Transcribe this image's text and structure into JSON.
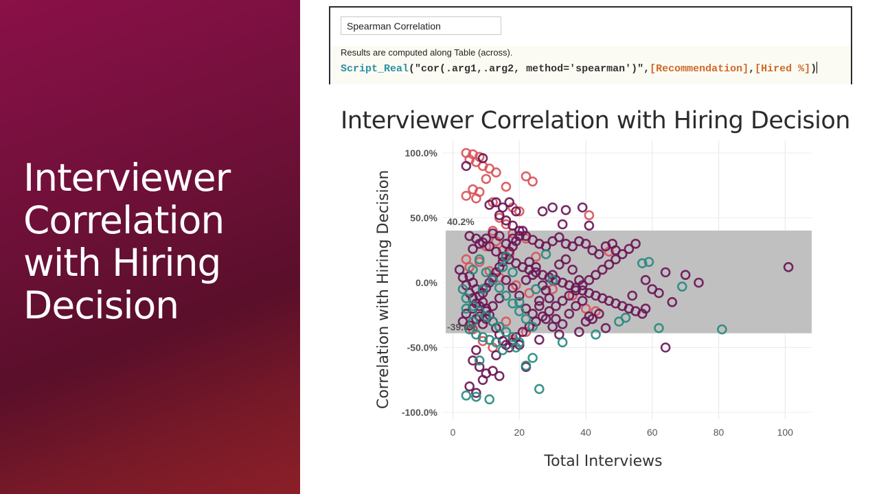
{
  "left_panel": {
    "title": "Interviewer Correlation with Hiring Decision"
  },
  "calculation_editor": {
    "name_value": "Spearman Correlation",
    "note": "Results are computed along Table (across).",
    "formula": {
      "function": "Script_Real",
      "open_paren": "(",
      "script_string": "\"cor(.arg1,.arg2, method='spearman')\"",
      "comma1": ",",
      "field1": "[Recommendation]",
      "comma2": ",",
      "field2": "[Hired %]",
      "close_paren": ")"
    }
  },
  "visualization": {
    "title": "Interviewer Correlation with Hiring Decision"
  },
  "chart_data": {
    "type": "scatter",
    "title": "Interviewer Correlation with Hiring Decision",
    "xlabel": "Total Interviews",
    "ylabel": "Correlation with Hiring Decision",
    "xlim": [
      -3,
      108
    ],
    "ylim": [
      -100,
      100
    ],
    "x_ticks": [
      0,
      20,
      40,
      60,
      80,
      100
    ],
    "x_tick_labels": [
      "0",
      "20",
      "40",
      "60",
      "80",
      "100"
    ],
    "y_ticks": [
      100,
      50,
      0,
      -50,
      -100
    ],
    "y_tick_labels": [
      "100.0%",
      "50.0%",
      "0.0%",
      "-50.0%",
      "-100.0%"
    ],
    "grid": true,
    "reference_band": {
      "low": -39.0,
      "high": 40.2,
      "low_label": "-39.0%",
      "high_label": "40.2%",
      "color": "#bdbdbd"
    },
    "colors": {
      "red": "#d9545a",
      "purple": "#6b1758",
      "teal": "#2a8a80"
    },
    "series": [
      {
        "color_key": "red",
        "points": [
          [
            4,
            100
          ],
          [
            6,
            99
          ],
          [
            8,
            97
          ],
          [
            5,
            95
          ],
          [
            7,
            93
          ],
          [
            9,
            90
          ],
          [
            11,
            88
          ],
          [
            13,
            85
          ],
          [
            10,
            80
          ],
          [
            6,
            72
          ],
          [
            8,
            70
          ],
          [
            4,
            67
          ],
          [
            7,
            65
          ],
          [
            12,
            62
          ],
          [
            16,
            74
          ],
          [
            22,
            82
          ],
          [
            24,
            78
          ],
          [
            18,
            58
          ],
          [
            20,
            55
          ],
          [
            14,
            50
          ],
          [
            16,
            45
          ],
          [
            12,
            40
          ],
          [
            18,
            38
          ],
          [
            20,
            36
          ],
          [
            22,
            34
          ],
          [
            13,
            32
          ],
          [
            10,
            28
          ],
          [
            15,
            25
          ],
          [
            17,
            22
          ],
          [
            25,
            20
          ],
          [
            8,
            16
          ],
          [
            5,
            12
          ],
          [
            4,
            18
          ],
          [
            11,
            9
          ],
          [
            14,
            4
          ],
          [
            19,
            -2
          ],
          [
            23,
            -8
          ],
          [
            30,
            -5
          ],
          [
            36,
            -10
          ],
          [
            40,
            -20
          ],
          [
            43,
            -22
          ],
          [
            47,
            24
          ],
          [
            41,
            52
          ],
          [
            16,
            -30
          ],
          [
            22,
            -38
          ],
          [
            9,
            -45
          ],
          [
            6,
            -36
          ],
          [
            18,
            -44
          ],
          [
            12,
            -50
          ]
        ]
      },
      {
        "color_key": "purple",
        "points": [
          [
            4,
            90
          ],
          [
            9,
            96
          ],
          [
            11,
            60
          ],
          [
            13,
            62
          ],
          [
            15,
            58
          ],
          [
            17,
            62
          ],
          [
            19,
            55
          ],
          [
            14,
            52
          ],
          [
            16,
            48
          ],
          [
            18,
            44
          ],
          [
            20,
            40
          ],
          [
            22,
            36
          ],
          [
            24,
            33
          ],
          [
            26,
            30
          ],
          [
            28,
            28
          ],
          [
            30,
            32
          ],
          [
            32,
            35
          ],
          [
            34,
            30
          ],
          [
            36,
            28
          ],
          [
            38,
            32
          ],
          [
            40,
            30
          ],
          [
            42,
            25
          ],
          [
            44,
            22
          ],
          [
            46,
            28
          ],
          [
            48,
            30
          ],
          [
            49,
            25
          ],
          [
            27,
            55
          ],
          [
            30,
            58
          ],
          [
            34,
            56
          ],
          [
            39,
            58
          ],
          [
            41,
            44
          ],
          [
            33,
            45
          ],
          [
            5,
            36
          ],
          [
            7,
            34
          ],
          [
            9,
            31
          ],
          [
            11,
            28
          ],
          [
            13,
            24
          ],
          [
            15,
            20
          ],
          [
            17,
            18
          ],
          [
            19,
            15
          ],
          [
            21,
            12
          ],
          [
            23,
            10
          ],
          [
            25,
            8
          ],
          [
            27,
            6
          ],
          [
            29,
            4
          ],
          [
            31,
            2
          ],
          [
            33,
            0
          ],
          [
            35,
            -2
          ],
          [
            37,
            -4
          ],
          [
            39,
            -6
          ],
          [
            41,
            -8
          ],
          [
            43,
            -10
          ],
          [
            45,
            -12
          ],
          [
            47,
            -14
          ],
          [
            49,
            -16
          ],
          [
            51,
            -18
          ],
          [
            53,
            -20
          ],
          [
            55,
            -22
          ],
          [
            57,
            -24
          ],
          [
            5,
            5
          ],
          [
            6,
            0
          ],
          [
            7,
            -5
          ],
          [
            8,
            -10
          ],
          [
            9,
            -15
          ],
          [
            10,
            -20
          ],
          [
            11,
            -25
          ],
          [
            12,
            -30
          ],
          [
            13,
            -35
          ],
          [
            14,
            -40
          ],
          [
            15,
            -45
          ],
          [
            16,
            -48
          ],
          [
            17,
            -50
          ],
          [
            18,
            -46
          ],
          [
            19,
            -42
          ],
          [
            21,
            -38
          ],
          [
            23,
            -34
          ],
          [
            25,
            -30
          ],
          [
            27,
            -26
          ],
          [
            29,
            -22
          ],
          [
            31,
            -18
          ],
          [
            33,
            -14
          ],
          [
            35,
            -10
          ],
          [
            37,
            -6
          ],
          [
            39,
            -2
          ],
          [
            41,
            2
          ],
          [
            43,
            6
          ],
          [
            45,
            10
          ],
          [
            47,
            14
          ],
          [
            49,
            18
          ],
          [
            51,
            22
          ],
          [
            53,
            26
          ],
          [
            55,
            30
          ],
          [
            58,
            2
          ],
          [
            60,
            -5
          ],
          [
            62,
            -8
          ],
          [
            64,
            8
          ],
          [
            66,
            -15
          ],
          [
            70,
            6
          ],
          [
            74,
            0
          ],
          [
            64,
            -50
          ],
          [
            54,
            -10
          ],
          [
            58,
            -20
          ],
          [
            46,
            -35
          ],
          [
            38,
            -38
          ],
          [
            32,
            -40
          ],
          [
            26,
            -44
          ],
          [
            20,
            -48
          ],
          [
            6,
            -60
          ],
          [
            8,
            -65
          ],
          [
            10,
            -70
          ],
          [
            12,
            -68
          ],
          [
            14,
            -72
          ],
          [
            5,
            -80
          ],
          [
            7,
            -85
          ],
          [
            9,
            -75
          ],
          [
            22,
            -65
          ],
          [
            101,
            12
          ],
          [
            7,
            -52
          ],
          [
            13,
            -56
          ],
          [
            4,
            -24
          ],
          [
            6,
            -20
          ],
          [
            8,
            -26
          ],
          [
            10,
            -22
          ],
          [
            3,
            -30
          ],
          [
            5,
            -33
          ],
          [
            7,
            -28
          ],
          [
            9,
            -32
          ],
          [
            2,
            10
          ],
          [
            3,
            4
          ],
          [
            4,
            -2
          ],
          [
            5,
            -8
          ],
          [
            6,
            -12
          ],
          [
            7,
            -16
          ],
          [
            8,
            -18
          ],
          [
            9,
            -8
          ],
          [
            10,
            -4
          ],
          [
            11,
            0
          ],
          [
            12,
            4
          ],
          [
            13,
            8
          ],
          [
            14,
            12
          ],
          [
            15,
            16
          ],
          [
            16,
            20
          ],
          [
            17,
            24
          ],
          [
            18,
            28
          ],
          [
            19,
            32
          ],
          [
            20,
            36
          ],
          [
            21,
            40
          ],
          [
            23,
            16
          ],
          [
            25,
            12
          ],
          [
            27,
            -2
          ],
          [
            29,
            -12
          ],
          [
            31,
            -28
          ],
          [
            33,
            -32
          ],
          [
            35,
            -24
          ],
          [
            37,
            -18
          ],
          [
            39,
            -14
          ],
          [
            41,
            -26
          ],
          [
            22,
            -20
          ],
          [
            24,
            -24
          ],
          [
            26,
            -14
          ],
          [
            28,
            -6
          ],
          [
            30,
            6
          ],
          [
            32,
            14
          ],
          [
            34,
            18
          ],
          [
            36,
            10
          ],
          [
            38,
            2
          ],
          [
            40,
            -30
          ],
          [
            42,
            -28
          ],
          [
            44,
            -24
          ],
          [
            20,
            -10
          ],
          [
            18,
            -4
          ],
          [
            16,
            2
          ],
          [
            14,
            -12
          ],
          [
            12,
            -18
          ],
          [
            10,
            -28
          ],
          [
            22,
            2
          ],
          [
            24,
            6
          ],
          [
            26,
            -18
          ],
          [
            28,
            -28
          ],
          [
            30,
            -34
          ],
          [
            16,
            30
          ],
          [
            18,
            34
          ],
          [
            14,
            36
          ],
          [
            12,
            38
          ],
          [
            10,
            34
          ],
          [
            8,
            30
          ],
          [
            6,
            26
          ]
        ]
      },
      {
        "color_key": "teal",
        "points": [
          [
            8,
            18
          ],
          [
            6,
            10
          ],
          [
            10,
            8
          ],
          [
            12,
            2
          ],
          [
            14,
            -4
          ],
          [
            16,
            -10
          ],
          [
            18,
            -16
          ],
          [
            20,
            -22
          ],
          [
            22,
            -28
          ],
          [
            24,
            -34
          ],
          [
            4,
            -12
          ],
          [
            6,
            -18
          ],
          [
            8,
            -22
          ],
          [
            10,
            -26
          ],
          [
            12,
            -30
          ],
          [
            14,
            -34
          ],
          [
            16,
            -38
          ],
          [
            18,
            -42
          ],
          [
            20,
            -46
          ],
          [
            5,
            -36
          ],
          [
            7,
            -40
          ],
          [
            9,
            -42
          ],
          [
            11,
            -44
          ],
          [
            13,
            -46
          ],
          [
            15,
            -52
          ],
          [
            19,
            -50
          ],
          [
            24,
            -58
          ],
          [
            22,
            -64
          ],
          [
            26,
            -82
          ],
          [
            8,
            -60
          ],
          [
            4,
            -87
          ],
          [
            7,
            -88
          ],
          [
            11,
            -90
          ],
          [
            33,
            -46
          ],
          [
            43,
            -40
          ],
          [
            50,
            -30
          ],
          [
            52,
            -27
          ],
          [
            57,
            15
          ],
          [
            59,
            16
          ],
          [
            62,
            -35
          ],
          [
            69,
            -3
          ],
          [
            81,
            -36
          ],
          [
            28,
            22
          ],
          [
            30,
            2
          ],
          [
            15,
            12
          ],
          [
            18,
            8
          ],
          [
            3,
            -5
          ],
          [
            4,
            -20
          ],
          [
            6,
            -30
          ],
          [
            9,
            -5
          ],
          [
            16,
            20
          ],
          [
            20,
            -15
          ],
          [
            25,
            -5
          ]
        ]
      }
    ]
  }
}
